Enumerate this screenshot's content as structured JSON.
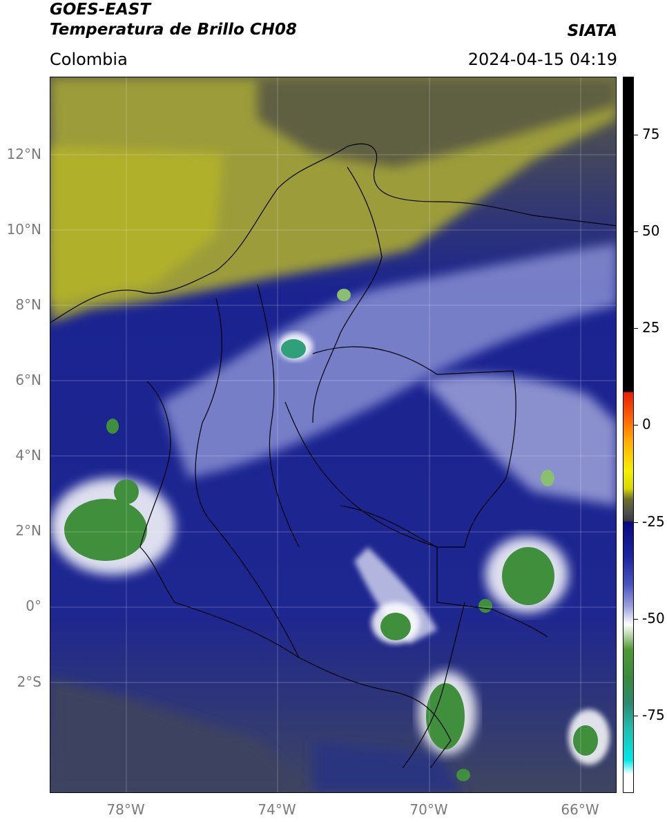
{
  "header": {
    "satellite": "GOES-EAST",
    "product": "Temperatura de Brillo CH08",
    "brand": "SIATA",
    "region": "Colombia",
    "timestamp": "2024-04-15 04:19"
  },
  "map": {
    "lat_ticks": [
      "12°N",
      "10°N",
      "8°N",
      "6°N",
      "4°N",
      "2°N",
      "0°",
      "2°S"
    ],
    "lon_ticks": [
      "78°W",
      "74°W",
      "70°W",
      "66°W"
    ],
    "colors": {
      "dry": "#a6a634",
      "mid": "#1a2390",
      "cold": "#ffffff",
      "very_cold": "#3f8f3c",
      "coldest": "#20c0b0"
    }
  },
  "colorbar": {
    "ticks": [
      "75",
      "50",
      "25",
      "0",
      "-25",
      "-50",
      "-75"
    ],
    "values": [
      75,
      50,
      25,
      0,
      -25,
      -50,
      -75
    ],
    "range": [
      -95,
      90
    ]
  }
}
